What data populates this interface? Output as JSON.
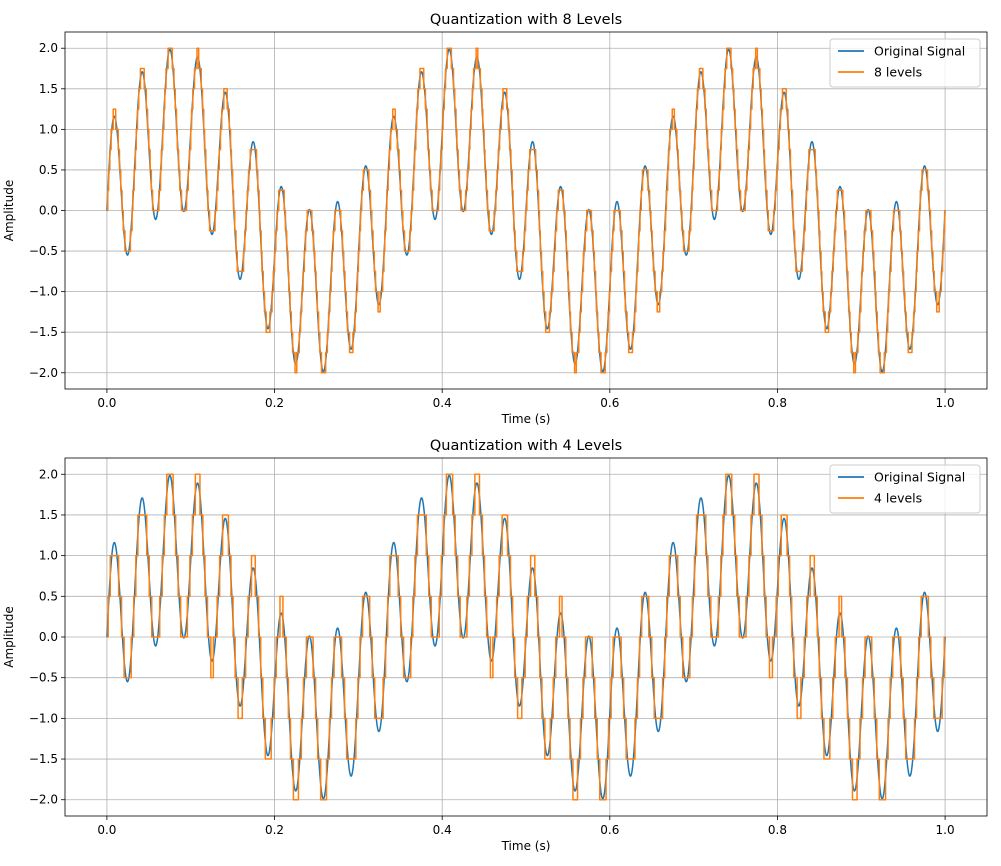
{
  "chart_data": [
    {
      "type": "line",
      "title": "Quantization with 8 Levels",
      "xlabel": "Time (s)",
      "ylabel": "Amplitude",
      "xlim": [
        -0.05,
        1.05
      ],
      "ylim": [
        -2.2,
        2.2
      ],
      "xticks": [
        0.0,
        0.2,
        0.4,
        0.6,
        0.8,
        1.0
      ],
      "xtick_labels": [
        "0.0",
        "0.2",
        "0.4",
        "0.6",
        "0.8",
        "1.0"
      ],
      "yticks": [
        -2.0,
        -1.5,
        -1.0,
        -0.5,
        0.0,
        0.5,
        1.0,
        1.5,
        2.0
      ],
      "ytick_labels": [
        "−2.0",
        "−1.5",
        "−1.0",
        "−0.5",
        "0.0",
        "0.5",
        "1.0",
        "1.5",
        "2.0"
      ],
      "grid": true,
      "legend_position": "upper right",
      "signal": "sin(2π·3t) + sin(2π·30t), t ∈ [0, 1]",
      "levels": 8,
      "series": [
        {
          "name": "Original Signal",
          "color": "#1f77b4",
          "kind": "original"
        },
        {
          "name": "8 levels",
          "color": "#ff7f0e",
          "kind": "quantized",
          "quantization_step": 0.25
        }
      ]
    },
    {
      "type": "line",
      "title": "Quantization with 4 Levels",
      "xlabel": "Time (s)",
      "ylabel": "Amplitude",
      "xlim": [
        -0.05,
        1.05
      ],
      "ylim": [
        -2.2,
        2.2
      ],
      "xticks": [
        0.0,
        0.2,
        0.4,
        0.6,
        0.8,
        1.0
      ],
      "xtick_labels": [
        "0.0",
        "0.2",
        "0.4",
        "0.6",
        "0.8",
        "1.0"
      ],
      "yticks": [
        -2.0,
        -1.5,
        -1.0,
        -0.5,
        0.0,
        0.5,
        1.0,
        1.5,
        2.0
      ],
      "ytick_labels": [
        "−2.0",
        "−1.5",
        "−1.0",
        "−0.5",
        "0.0",
        "0.5",
        "1.0",
        "1.5",
        "2.0"
      ],
      "grid": true,
      "legend_position": "upper right",
      "signal": "sin(2π·3t) + sin(2π·30t), t ∈ [0, 1]",
      "levels": 4,
      "series": [
        {
          "name": "Original Signal",
          "color": "#1f77b4",
          "kind": "original"
        },
        {
          "name": "4 levels",
          "color": "#ff7f0e",
          "kind": "quantized",
          "quantization_step": 0.5
        }
      ]
    }
  ]
}
